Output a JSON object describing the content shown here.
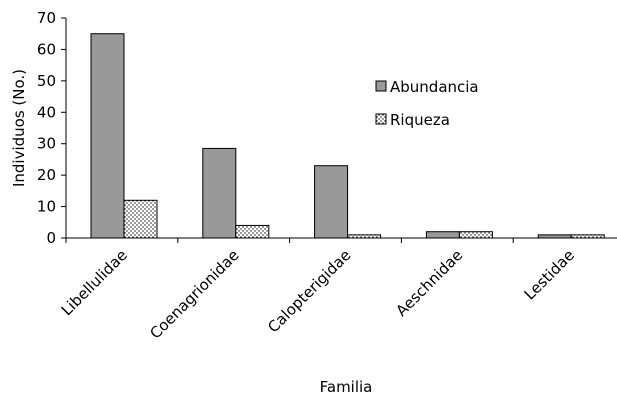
{
  "chart_data": {
    "type": "bar",
    "title": "",
    "xlabel": "Familia",
    "ylabel": "Individuos (No.)",
    "ylim": [
      0,
      70
    ],
    "yticks": [
      0,
      10,
      20,
      30,
      40,
      50,
      60,
      70
    ],
    "grid": false,
    "legend_position": "right",
    "categories": [
      "Libellulidae",
      "Coenagrionidae",
      "Calopterigidae",
      "Aeschnidae",
      "Lestidae"
    ],
    "series": [
      {
        "name": "Abundancia",
        "values": [
          65,
          28.5,
          23,
          2,
          1
        ],
        "color": "#999999",
        "pattern": "solid"
      },
      {
        "name": "Riqueza",
        "values": [
          12,
          4,
          1,
          2,
          1
        ],
        "color": "#ffffff",
        "pattern": "dotted"
      }
    ]
  }
}
